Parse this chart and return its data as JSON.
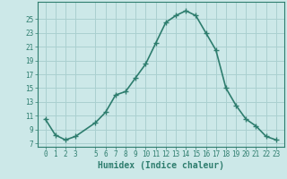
{
  "x": [
    0,
    1,
    2,
    3,
    5,
    6,
    7,
    8,
    9,
    10,
    11,
    12,
    13,
    14,
    15,
    16,
    17,
    18,
    19,
    20,
    21,
    22,
    23
  ],
  "y": [
    10.5,
    8.2,
    7.5,
    8.0,
    10.0,
    11.5,
    14.0,
    14.5,
    16.5,
    18.5,
    21.5,
    24.5,
    25.5,
    26.2,
    25.5,
    23.0,
    20.5,
    15.0,
    12.5,
    10.5,
    9.5,
    8.0,
    7.5
  ],
  "line_color": "#2e7d6e",
  "marker": "+",
  "bg_color": "#cce8e8",
  "grid_color": "#aad0d0",
  "xlabel": "Humidex (Indice chaleur)",
  "xlabel_fontsize": 7,
  "ylim": [
    6.5,
    27.5
  ],
  "yticks": [
    7,
    9,
    11,
    13,
    15,
    17,
    19,
    21,
    23,
    25
  ],
  "xticks": [
    0,
    1,
    2,
    3,
    5,
    6,
    7,
    8,
    9,
    10,
    11,
    12,
    13,
    14,
    15,
    16,
    17,
    18,
    19,
    20,
    21,
    22,
    23
  ],
  "tick_fontsize": 5.5,
  "line_width": 1.2,
  "marker_size": 4
}
